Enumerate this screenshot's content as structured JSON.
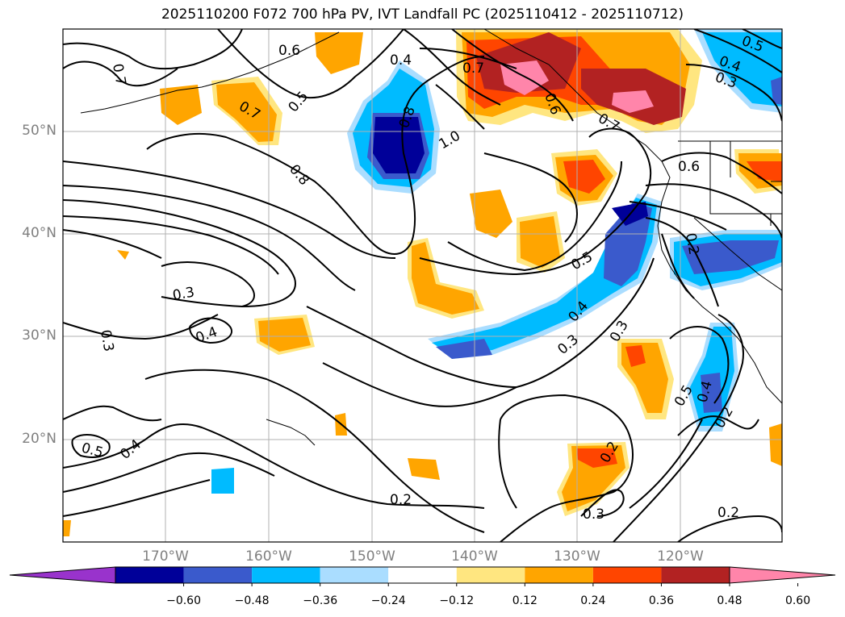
{
  "title": "2025110200 F072 700 hPa PV, IVT Landfall PC (2025110412 - 2025110712)",
  "lat_labels": [
    "50°N",
    "40°N",
    "30°N",
    "20°N"
  ],
  "lon_labels": [
    "170°W",
    "160°W",
    "150°W",
    "140°W",
    "130°W",
    "120°W"
  ],
  "colorbar": {
    "ticks": [
      "−0.60",
      "−0.48",
      "−0.36",
      "−0.24",
      "−0.12",
      "0.12",
      "0.24",
      "0.36",
      "0.48",
      "0.60"
    ],
    "colors": [
      "#9933cc",
      "#000099",
      "#3a5acc",
      "#00bbff",
      "#aaddff",
      "#ffffff",
      "#ffe680",
      "#ffa500",
      "#ff4500",
      "#b22222",
      "#ff85aa"
    ]
  },
  "contour_labels": [
    "0.7",
    "0.6",
    "0.4",
    "0.7",
    "0.5",
    "0.8",
    "1.0",
    "0.7",
    "0.6",
    "0.5",
    "0.4",
    "0.3",
    "0.7",
    "0.8",
    "0.6",
    "0.2",
    "0.5",
    "0.4",
    "0.3",
    "0.3",
    "0.3",
    "0.4",
    "0.3",
    "0.5",
    "0.4",
    "0.2",
    "0.2",
    "0.2",
    "0.3",
    "0.2",
    "0.5",
    "0.4"
  ]
}
